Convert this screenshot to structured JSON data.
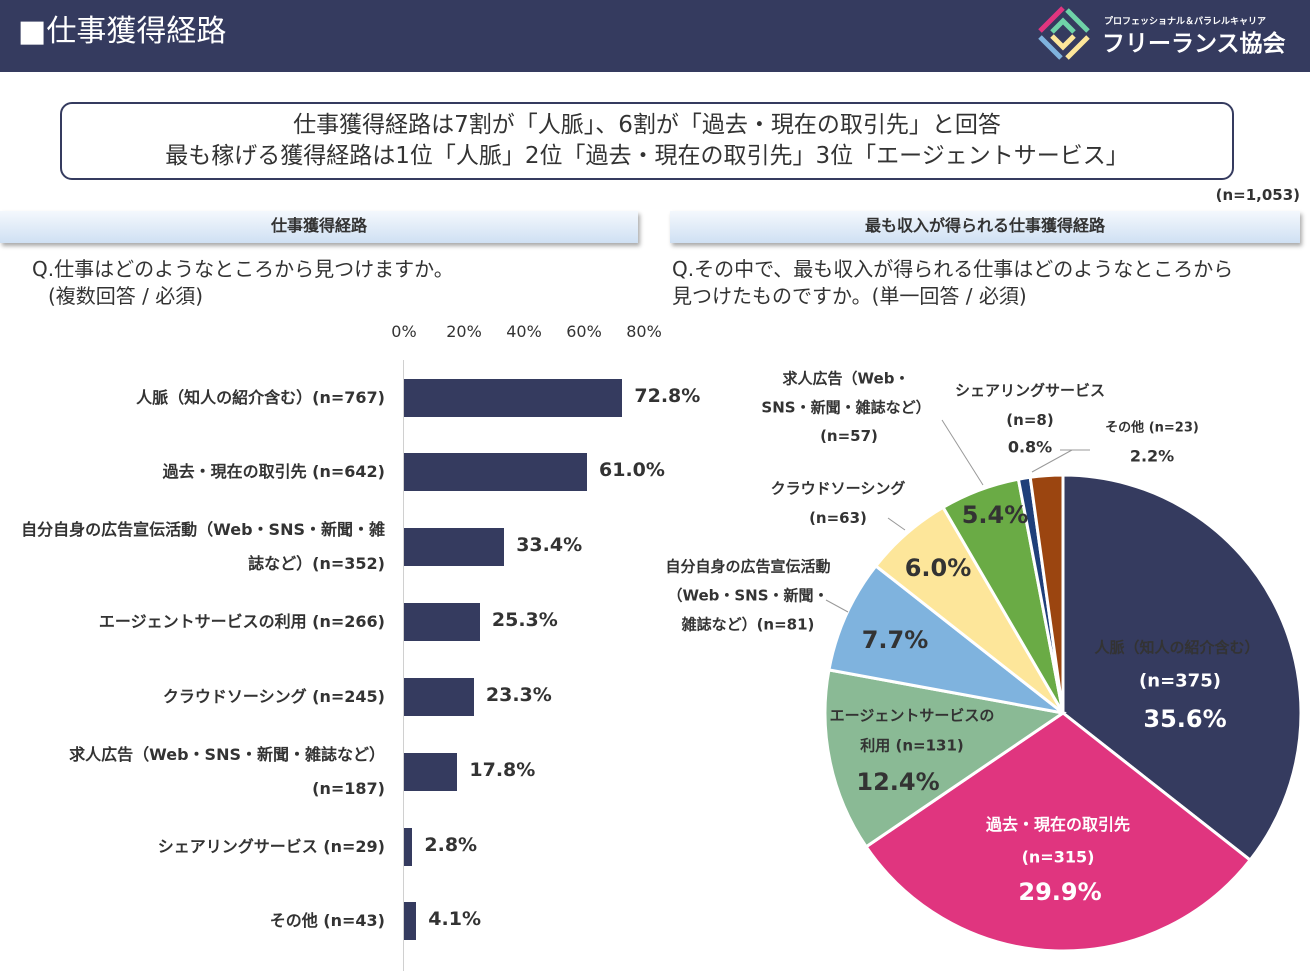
{
  "header": {
    "title": "■仕事獲得経路",
    "logo_sub": "プロフェッショナル＆パラレルキャリア",
    "logo_name": "フリーランス協会"
  },
  "summary": {
    "line1": "仕事獲得経路は7割が「人脈」、6割が「過去・現在の取引先」と回答",
    "line2": "最も稼げる獲得経路は1位「人脈」2位「過去・現在の取引先」3位「エージェントサービス」"
  },
  "sample_size": "(n=1,053)",
  "left": {
    "banner": "仕事獲得経路",
    "q1": "Q.仕事はどのようなところから見つけますか。",
    "q2": "(複数回答 / 必須)"
  },
  "right": {
    "banner": "最も収入が得られる仕事獲得経路",
    "q1": "Q.その中で、最も収入が得られる仕事はどのようなところから",
    "q2": "見つけたものですか。(単一回答 / 必須)"
  },
  "chart_data": [
    {
      "type": "bar",
      "orientation": "horizontal",
      "xlim": [
        0,
        80
      ],
      "ticks": [
        "0%",
        "20%",
        "40%",
        "60%",
        "80%"
      ],
      "color": "#353b5f",
      "categories": [
        "人脈（知人の紹介含む）(n=767)",
        "過去・現在の取引先 (n=642)",
        "自分自身の広告宣伝活動（Web・SNS・新聞・雑|誌など）(n=352)",
        "エージェントサービスの利用 (n=266)",
        "クラウドソーシング (n=245)",
        "求人広告（Web・SNS・新聞・雑誌など）|(n=187)",
        "シェアリングサービス (n=29)",
        "その他 (n=43)"
      ],
      "values": [
        72.8,
        61.0,
        33.4,
        25.3,
        23.3,
        17.8,
        2.8,
        4.1
      ],
      "labels": [
        "72.8%",
        "61.0%",
        "33.4%",
        "25.3%",
        "23.3%",
        "17.8%",
        "2.8%",
        "4.1%"
      ]
    },
    {
      "type": "pie",
      "start": "12 o'clock, clockwise",
      "slices": [
        {
          "label": "人脈（知人の紹介含む）",
          "n": "(n=375)",
          "value": 35.6,
          "pct": "35.6%",
          "color": "#353b5f"
        },
        {
          "label": "過去・現在の取引先",
          "n": "(n=315)",
          "value": 29.9,
          "pct": "29.9%",
          "color": "#e0357f"
        },
        {
          "label": "エージェントサービスの",
          "label2": "利用 (n=131)",
          "value": 12.4,
          "pct": "12.4%",
          "color": "#8aba95"
        },
        {
          "label": "自分自身の広告宣伝活動",
          "label2": "（Web・SNS・新聞・",
          "label3": "雑誌など）(n=81)",
          "value": 7.7,
          "pct": "7.7%",
          "color": "#7fb3de"
        },
        {
          "label": "クラウドソーシング",
          "n": "(n=63)",
          "value": 6.0,
          "pct": "6.0%",
          "color": "#fde69a"
        },
        {
          "label": "求人広告（Web・",
          "label2": "SNS・新聞・雑誌など）",
          "n": "(n=57)",
          "value": 5.4,
          "pct": "5.4%",
          "color": "#6aab45"
        },
        {
          "label": "シェアリングサービス",
          "n": "(n=8)",
          "value": 0.8,
          "pct": "0.8%",
          "color": "#1f3f7a"
        },
        {
          "label": "その他 (n=23)",
          "value": 2.2,
          "pct": "2.2%",
          "color": "#9b4510"
        }
      ]
    }
  ]
}
